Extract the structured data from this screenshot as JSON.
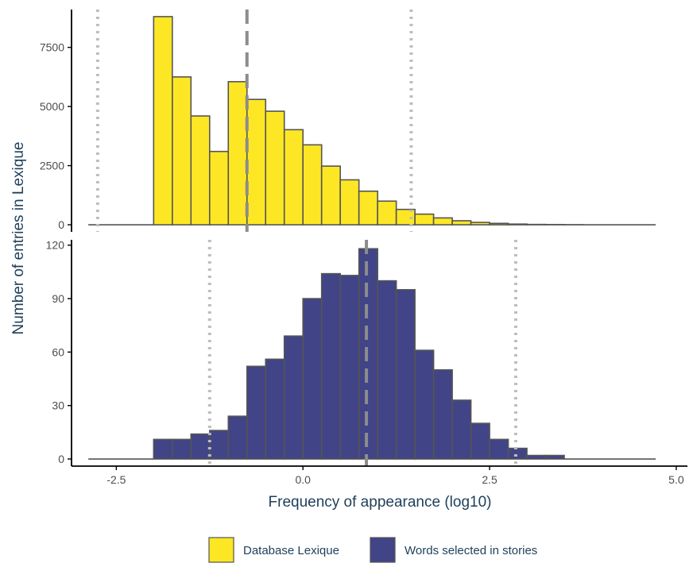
{
  "chart_data": {
    "type": "histogram",
    "xlabel": "Frequency of appearance (log10)",
    "ylabel": "Number of entries in Lexique",
    "x_ticks": [
      -2.5,
      0.0,
      2.5,
      5.0
    ],
    "x_tick_labels": [
      "-2.5",
      "0.0",
      "2.5",
      "5.0"
    ],
    "xlim": [
      -3.1,
      5.15
    ],
    "bin_width": 0.25,
    "grid": false,
    "legend_position": "bottom",
    "panels": [
      {
        "name": "top",
        "series": "Database Lexique",
        "color": "#fde725",
        "ylim": [
          -300,
          9100
        ],
        "y_ticks": [
          0,
          2500,
          5000,
          7500
        ],
        "y_tick_labels": [
          "0",
          "2500",
          "5000",
          "7500"
        ],
        "bins": [
          {
            "x0": -2.875,
            "x1": -2.0,
            "count": 0
          },
          {
            "x0": -2.0,
            "x1": -1.75,
            "count": 8800
          },
          {
            "x0": -1.75,
            "x1": -1.5,
            "count": 6250
          },
          {
            "x0": -1.5,
            "x1": -1.25,
            "count": 4600
          },
          {
            "x0": -1.25,
            "x1": -1.0,
            "count": 3100
          },
          {
            "x0": -1.0,
            "x1": -0.75,
            "count": 6050
          },
          {
            "x0": -0.75,
            "x1": -0.5,
            "count": 5300
          },
          {
            "x0": -0.5,
            "x1": -0.25,
            "count": 4800
          },
          {
            "x0": -0.25,
            "x1": 0.0,
            "count": 4020
          },
          {
            "x0": 0.0,
            "x1": 0.25,
            "count": 3380
          },
          {
            "x0": 0.25,
            "x1": 0.5,
            "count": 2480
          },
          {
            "x0": 0.5,
            "x1": 0.75,
            "count": 1900
          },
          {
            "x0": 0.75,
            "x1": 1.0,
            "count": 1420
          },
          {
            "x0": 1.0,
            "x1": 1.25,
            "count": 1000
          },
          {
            "x0": 1.25,
            "x1": 1.5,
            "count": 650
          },
          {
            "x0": 1.5,
            "x1": 1.75,
            "count": 450
          },
          {
            "x0": 1.75,
            "x1": 2.0,
            "count": 290
          },
          {
            "x0": 2.0,
            "x1": 2.25,
            "count": 170
          },
          {
            "x0": 2.25,
            "x1": 2.5,
            "count": 100
          },
          {
            "x0": 2.5,
            "x1": 2.75,
            "count": 60
          },
          {
            "x0": 2.75,
            "x1": 3.0,
            "count": 30
          },
          {
            "x0": 3.0,
            "x1": 3.25,
            "count": 15
          },
          {
            "x0": 3.25,
            "x1": 3.5,
            "count": 10
          },
          {
            "x0": 3.5,
            "x1": 3.75,
            "count": 5
          },
          {
            "x0": 3.75,
            "x1": 4.725,
            "count": 0
          }
        ],
        "mean_line": -0.75,
        "quantile_lines": [
          -2.75,
          1.45
        ]
      },
      {
        "name": "bottom",
        "series": "Words selected in stories",
        "color": "#414487",
        "ylim": [
          -4,
          123
        ],
        "y_ticks": [
          0,
          30,
          60,
          90,
          120
        ],
        "y_tick_labels": [
          "0",
          "30",
          "60",
          "90",
          "120"
        ],
        "bins": [
          {
            "x0": -2.875,
            "x1": -2.0,
            "count": 0
          },
          {
            "x0": -2.0,
            "x1": -1.75,
            "count": 11
          },
          {
            "x0": -1.75,
            "x1": -1.5,
            "count": 11
          },
          {
            "x0": -1.5,
            "x1": -1.25,
            "count": 14
          },
          {
            "x0": -1.25,
            "x1": -1.0,
            "count": 16
          },
          {
            "x0": -1.0,
            "x1": -0.75,
            "count": 24
          },
          {
            "x0": -0.75,
            "x1": -0.5,
            "count": 52
          },
          {
            "x0": -0.5,
            "x1": -0.25,
            "count": 56
          },
          {
            "x0": -0.25,
            "x1": 0.0,
            "count": 69
          },
          {
            "x0": 0.0,
            "x1": 0.25,
            "count": 90
          },
          {
            "x0": 0.25,
            "x1": 0.5,
            "count": 104
          },
          {
            "x0": 0.5,
            "x1": 0.75,
            "count": 103
          },
          {
            "x0": 0.75,
            "x1": 1.0,
            "count": 118
          },
          {
            "x0": 1.0,
            "x1": 1.25,
            "count": 100
          },
          {
            "x0": 1.25,
            "x1": 1.5,
            "count": 95
          },
          {
            "x0": 1.5,
            "x1": 1.75,
            "count": 61
          },
          {
            "x0": 1.75,
            "x1": 2.0,
            "count": 50
          },
          {
            "x0": 2.0,
            "x1": 2.25,
            "count": 33
          },
          {
            "x0": 2.25,
            "x1": 2.5,
            "count": 20
          },
          {
            "x0": 2.5,
            "x1": 2.75,
            "count": 11
          },
          {
            "x0": 2.75,
            "x1": 3.0,
            "count": 6
          },
          {
            "x0": 3.0,
            "x1": 3.25,
            "count": 2
          },
          {
            "x0": 3.25,
            "x1": 3.5,
            "count": 2
          },
          {
            "x0": 3.5,
            "x1": 4.725,
            "count": 0
          }
        ],
        "mean_line": 0.85,
        "quantile_lines": [
          -1.25,
          2.85
        ]
      }
    ],
    "legend": [
      {
        "label": "Database Lexique",
        "color": "#fde725"
      },
      {
        "label": "Words selected in stories",
        "color": "#414487"
      }
    ],
    "styles": {
      "bar_outline": "#555555",
      "mean_line_color": "#8c8c8c",
      "quantile_line_color": "#bdbdbd",
      "axis_color": "#000000",
      "tick_label_color": "#4d4d4d",
      "title_color": "#1e3f5a"
    }
  }
}
